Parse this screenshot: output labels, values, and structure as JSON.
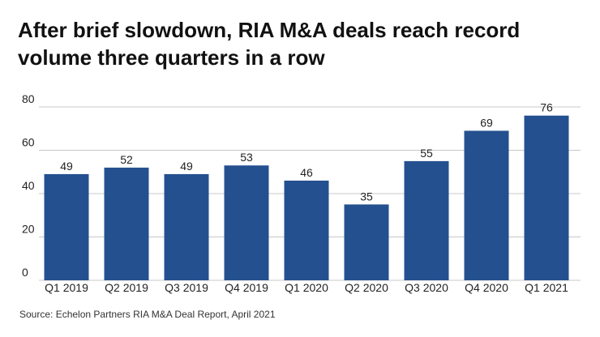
{
  "chart_data": {
    "type": "bar",
    "title": [
      "After brief slowdown, RIA M&A deals reach record",
      "volume three quarters in a row"
    ],
    "categories": [
      "Q1 2019",
      "Q2 2019",
      "Q3 2019",
      "Q4 2019",
      "Q1 2020",
      "Q2 2020",
      "Q3 2020",
      "Q4 2020",
      "Q1 2021"
    ],
    "values": [
      49,
      52,
      49,
      53,
      46,
      35,
      55,
      69,
      76
    ],
    "color": "#25508f",
    "ylim": [
      0,
      80
    ],
    "yticks": [
      0,
      20,
      40,
      60,
      80
    ],
    "grid": true,
    "source": "Source: Echelon Partners RIA M&A Deal Report, April 2021"
  }
}
